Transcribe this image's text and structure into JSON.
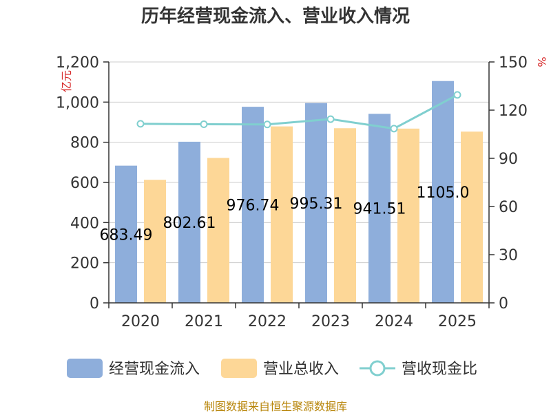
{
  "chart_data": {
    "type": "bar",
    "title": "历年经营现金流入、营业收入情况",
    "categories": [
      "2020",
      "2021",
      "2022",
      "2023",
      "2024",
      "2025"
    ],
    "series": [
      {
        "name": "经营现金流入",
        "kind": "bar",
        "axis": "left",
        "color": "#8eaedb",
        "values": [
          683.49,
          802.61,
          976.74,
          995.31,
          941.51,
          1105.0
        ],
        "labels": [
          "683.49",
          "802.61",
          "976.74",
          "995.31",
          "941.51",
          "1105.0"
        ]
      },
      {
        "name": "营业总收入",
        "kind": "bar",
        "axis": "left",
        "color": "#fdd797",
        "values": [
          613,
          722,
          879,
          870,
          868,
          853
        ]
      },
      {
        "name": "营收现金比",
        "kind": "line",
        "axis": "right",
        "color": "#80cfcf",
        "values": [
          111.5,
          111.2,
          111.1,
          114.4,
          108.5,
          129.5
        ]
      }
    ],
    "y_left": {
      "unit": "亿元",
      "min": 0,
      "max": 1200,
      "ticks": [
        0,
        200,
        400,
        600,
        800,
        1000,
        1200
      ],
      "tick_labels": [
        "0",
        "200",
        "400",
        "600",
        "800",
        "1,000",
        "1,200"
      ]
    },
    "y_right": {
      "unit": "%",
      "min": 0,
      "max": 150,
      "ticks": [
        0,
        30,
        60,
        90,
        120,
        150
      ],
      "tick_labels": [
        "0",
        "30",
        "60",
        "90",
        "120",
        "150"
      ]
    },
    "grid": true,
    "legend_position": "bottom",
    "source": "制图数据来自恒生聚源数据库"
  }
}
